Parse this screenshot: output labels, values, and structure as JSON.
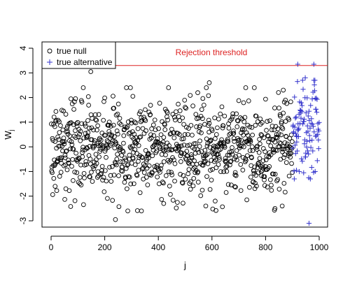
{
  "chart_data": {
    "type": "scatter",
    "xlabel": "j",
    "ylabel": "W",
    "ylabel_subscript": "j",
    "xlim": [
      0,
      1000
    ],
    "ylim": [
      -3.2,
      4.1
    ],
    "x_ticks": [
      0,
      200,
      400,
      600,
      800,
      1000
    ],
    "y_ticks": [
      -3,
      -2,
      -1,
      0,
      1,
      2,
      3,
      4
    ],
    "grid": false,
    "legend": {
      "position": "top-left",
      "entries": [
        {
          "label": "true null",
          "marker": "circle-open",
          "color": "#000000"
        },
        {
          "label": "true alternative",
          "marker": "plus",
          "color": "#3333cc"
        }
      ]
    },
    "threshold": {
      "y": 3.3,
      "label": "Rejection threshold",
      "color": "#dd2222"
    },
    "series": [
      {
        "name": "true null",
        "marker": "circle-open",
        "color": "#000000",
        "x_range": [
          1,
          900
        ],
        "n": 900,
        "value_spread_sd": 1.0,
        "notable_points": [
          [
            148,
            3.05
          ],
          [
            240,
            -2.95
          ],
          [
            590,
            2.6
          ],
          [
            305,
            2.05
          ],
          [
            866,
            2.3
          ],
          [
            862,
            -2.4
          ],
          [
            835,
            -2.5
          ],
          [
            55,
            -1.7
          ],
          [
            15,
            -1.6
          ],
          [
            420,
            -2.3
          ],
          [
            612,
            -2.2
          ]
        ]
      },
      {
        "name": "true alternative",
        "marker": "plus",
        "color": "#3333cc",
        "x_range": [
          901,
          1000
        ],
        "n": 100,
        "notable_points": [
          [
            920,
            3.35
          ],
          [
            980,
            3.35
          ],
          [
            948,
            2.8
          ],
          [
            962,
            -3.1
          ],
          [
            915,
            -0.95
          ],
          [
            985,
            -1.0
          ]
        ]
      }
    ]
  }
}
